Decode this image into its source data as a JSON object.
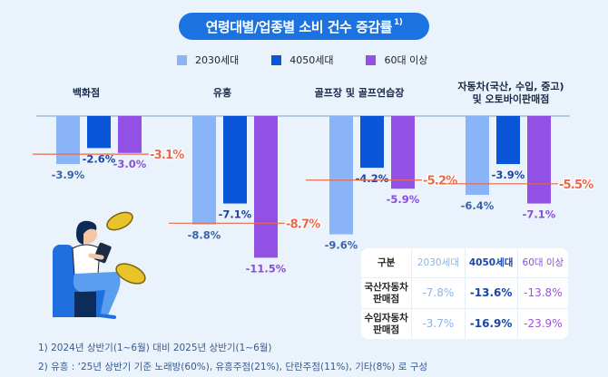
{
  "title": "연령대별/업종별 소비 건수 증감률",
  "title_sup": "1)",
  "colors": {
    "series_2030": "#8ab4f8",
    "series_4050": "#0a55d8",
    "series_60": "#9350e4",
    "average_line": "#e8694a",
    "title_bg": "#1a73e0"
  },
  "chart_data": {
    "type": "bar",
    "title": "연령대별/업종별 소비 건수 증감률",
    "categories": [
      "백화점",
      "유흥",
      "골프장 및 골프연습장",
      "자동차(국산, 수입, 중고) 및 오토바이판매점"
    ],
    "category_lines": [
      [
        "백화점"
      ],
      [
        "유흥"
      ],
      [
        "골프장 및 골프연습장"
      ],
      [
        "자동차(국산, 수입, 중고)",
        "및 오토바이판매점"
      ]
    ],
    "series": [
      {
        "name": "2030세대",
        "values": [
          -3.9,
          -8.8,
          -9.6,
          -6.4
        ],
        "labels": [
          "-3.9%",
          "-8.8%",
          "-9.6%",
          "-6.4%"
        ]
      },
      {
        "name": "4050세대",
        "values": [
          -2.6,
          -7.1,
          -4.2,
          -3.9
        ],
        "labels": [
          "-2.6%",
          "-7.1%",
          "-4.2%",
          "-3.9%"
        ]
      },
      {
        "name": "60대 이상",
        "values": [
          -3.0,
          -11.5,
          -5.9,
          -7.1
        ],
        "labels": [
          "-3.0%",
          "-11.5%",
          "-5.9%",
          "-7.1%"
        ]
      }
    ],
    "average": {
      "values": [
        -3.1,
        -8.7,
        -5.2,
        -5.5
      ],
      "labels": [
        "-3.1%",
        "-8.7%",
        "-5.2%",
        "-5.5%"
      ]
    },
    "ylim": [
      -12,
      0
    ],
    "legend": "top-center",
    "grid": false
  },
  "table": {
    "headers": [
      "구분",
      "2030세대",
      "4050세대",
      "60대 이상"
    ],
    "rows": [
      {
        "label_lines": [
          "국산자동차",
          "판매점"
        ],
        "values": [
          "-7.8%",
          "-13.6%",
          "-13.8%"
        ]
      },
      {
        "label_lines": [
          "수입자동차",
          "판매점"
        ],
        "values": [
          "-3.7%",
          "-16.9%",
          "-23.9%"
        ]
      }
    ]
  },
  "notes": [
    "1) 2024년 상반기(1~6월) 대비 2025년 상반기(1~6월)",
    "2) 유흥 : ‘25년 상반기 기준 노래방(60%), 유흥주점(21%), 단란주점(11%), 기타(8%) 로 구성"
  ],
  "illustration": "woman-sitting-with-tablet-and-coins"
}
